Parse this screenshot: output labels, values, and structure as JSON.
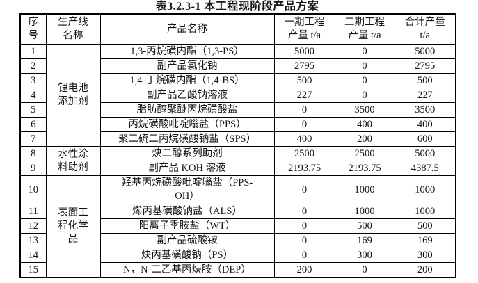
{
  "title": "表3.2.3-1  本工程现阶段产品方案",
  "table": {
    "headers": {
      "no": "序\n号",
      "line": "生产线\n名称",
      "product": "产品名称",
      "phase1": "一期工程\n产量 t/a",
      "phase2": "二期工程\n产量 t/a",
      "total": "合计产量\nt/a"
    },
    "groups": [
      {
        "label": "锂电池\n添加剂"
      },
      {
        "label": "水性涂\n料助剂"
      },
      {
        "label": "表面工\n程化学\n品"
      }
    ],
    "rows": [
      {
        "no": "1",
        "product": "1,3-丙烷磺内酯（1,3-PS）",
        "phase1": "5000",
        "phase2": "0",
        "total": "5000"
      },
      {
        "no": "2",
        "product": "副产品氯化钠",
        "phase1": "2795",
        "phase2": "0",
        "total": "2795"
      },
      {
        "no": "3",
        "product": "1,4-丁烷磺内酯（1,4-BS）",
        "phase1": "500",
        "phase2": "0",
        "total": "500"
      },
      {
        "no": "4",
        "product": "副产品乙酸钠溶液",
        "phase1": "227",
        "phase2": "0",
        "total": "227"
      },
      {
        "no": "5",
        "product": "脂肪醇聚醚丙烷磺酸盐",
        "phase1": "0",
        "phase2": "3500",
        "total": "3500"
      },
      {
        "no": "6",
        "product": "丙烷磺酸吡啶嗡盐（PPS）",
        "phase1": "0",
        "phase2": "400",
        "total": "400"
      },
      {
        "no": "7",
        "product": "聚二硫二丙烷磺酸钠盐（SPS）",
        "phase1": "400",
        "phase2": "200",
        "total": "600"
      },
      {
        "no": "8",
        "product": "炔二醇系列助剂",
        "phase1": "2500",
        "phase2": "2500",
        "total": "5000"
      },
      {
        "no": "9",
        "product": "副产品 KOH 溶液",
        "phase1": "2193.75",
        "phase2": "2193.75",
        "total": "4387.5"
      },
      {
        "no": "10",
        "product": "羟基丙烷磺酸吡啶嗡盐（PPS-\nOH）",
        "phase1": "0",
        "phase2": "1000",
        "total": "1000"
      },
      {
        "no": "11",
        "product": "烯丙基磺酸钠盐（ALS）",
        "phase1": "0",
        "phase2": "1000",
        "total": "1000"
      },
      {
        "no": "12",
        "product": "阳离子季胺盐（WT）",
        "phase1": "0",
        "phase2": "500",
        "total": "500"
      },
      {
        "no": "13",
        "product": "副产品硫酸铵",
        "phase1": "0",
        "phase2": "169",
        "total": "169"
      },
      {
        "no": "14",
        "product": "炔丙基磺酸钠（PS）",
        "phase1": "0",
        "phase2": "300",
        "total": "300"
      },
      {
        "no": "15",
        "product": "N，N-二乙基丙炔胺（DEP）",
        "phase1": "200",
        "phase2": "0",
        "total": "200"
      }
    ]
  }
}
